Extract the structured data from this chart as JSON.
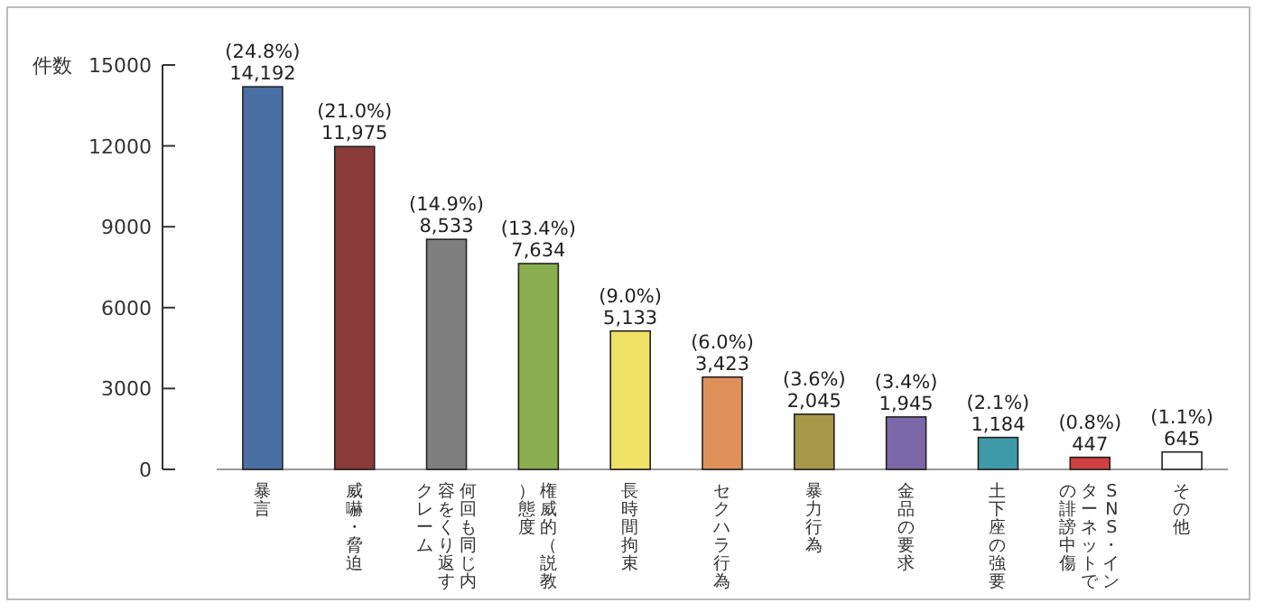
{
  "chart_data": {
    "type": "bar",
    "ylabel": "件数",
    "categories": [
      "暴言",
      "威嚇・脅迫",
      "何回も同じ内容をくり返すクレーム",
      "権威的（説教）態度",
      "長時間拘束",
      "セクハラ行為",
      "暴力行為",
      "金品の要求",
      "土下座の強要",
      "SNS・インターネットでの誹謗中傷",
      "その他"
    ],
    "values": [
      14192,
      11975,
      8533,
      7634,
      5133,
      3423,
      2045,
      1945,
      1184,
      447,
      645
    ],
    "colors": [
      "#4a6fa5",
      "#8b3a3a",
      "#7f7f7f",
      "#8aae4f",
      "#efe066",
      "#e0905a",
      "#a8984a",
      "#7b68a8",
      "#3e9aa8",
      "#d04040",
      "#ffffff"
    ],
    "value_labels": [
      "(24.8%)\n14,192",
      "(21.0%)\n11,975",
      "(14.9%)\n8,533",
      "(13.4%)\n7,634",
      "(9.0%)\n5,133",
      "(6.0%)\n3,423",
      "(3.6%)\n2,045",
      "(3.4%)\n1,945",
      "(2.1%)\n1,184",
      "(0.8%)\n447",
      "(1.1%)\n645"
    ],
    "ylim": [
      0,
      15000
    ],
    "yticks": [
      0,
      3000,
      6000,
      9000,
      12000,
      15000
    ],
    "grid": false
  }
}
